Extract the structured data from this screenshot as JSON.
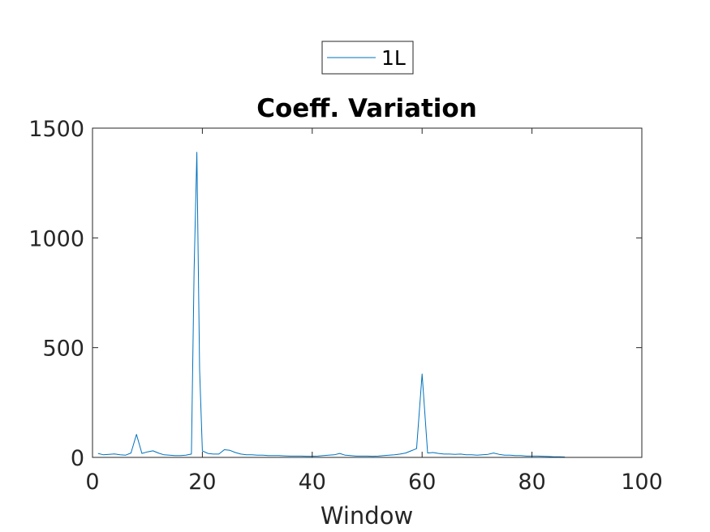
{
  "chart_data": {
    "type": "line",
    "title": "Coeff. Variation",
    "xlabel": "Window",
    "ylabel": "",
    "xlim": [
      0,
      100
    ],
    "ylim": [
      0,
      1500
    ],
    "xticks": [
      0,
      20,
      40,
      60,
      80,
      100
    ],
    "yticks": [
      0,
      500,
      1000,
      1500
    ],
    "xtick_labels": [
      "0",
      "20",
      "40",
      "60",
      "80",
      "100"
    ],
    "ytick_labels": [
      "0",
      "500",
      "1000",
      "1500"
    ],
    "grid": false,
    "legend_position": "top-center-outside",
    "series": [
      {
        "name": "1L",
        "color": "#0072BD",
        "x": [
          1,
          2,
          3,
          4,
          5,
          6,
          7,
          8,
          9,
          10,
          11,
          12,
          13,
          14,
          15,
          16,
          17,
          18,
          18.5,
          19,
          19.5,
          20,
          21,
          22,
          23,
          24,
          25,
          26,
          27,
          28,
          29,
          30,
          31,
          32,
          33,
          34,
          35,
          36,
          37,
          38,
          39,
          40,
          41,
          42,
          43,
          44,
          45,
          46,
          47,
          48,
          49,
          50,
          51,
          52,
          53,
          54,
          55,
          56,
          57,
          58,
          59,
          60,
          61,
          62,
          63,
          64,
          65,
          66,
          67,
          68,
          69,
          70,
          71,
          72,
          73,
          74,
          75,
          76,
          77,
          78,
          79,
          80,
          81,
          82,
          83,
          84,
          85,
          86
        ],
        "y": [
          18,
          12,
          14,
          16,
          12,
          10,
          20,
          105,
          18,
          25,
          30,
          20,
          12,
          10,
          8,
          8,
          10,
          15,
          850,
          1390,
          400,
          30,
          18,
          15,
          15,
          35,
          32,
          22,
          15,
          12,
          12,
          10,
          10,
          8,
          8,
          8,
          7,
          6,
          6,
          6,
          5,
          5,
          6,
          8,
          10,
          12,
          18,
          10,
          8,
          6,
          6,
          6,
          5,
          6,
          8,
          10,
          12,
          15,
          20,
          30,
          40,
          380,
          20,
          22,
          18,
          15,
          15,
          14,
          15,
          12,
          12,
          10,
          12,
          14,
          20,
          14,
          10,
          10,
          8,
          8,
          6,
          6,
          6,
          5,
          4,
          3,
          3,
          2
        ]
      }
    ]
  }
}
